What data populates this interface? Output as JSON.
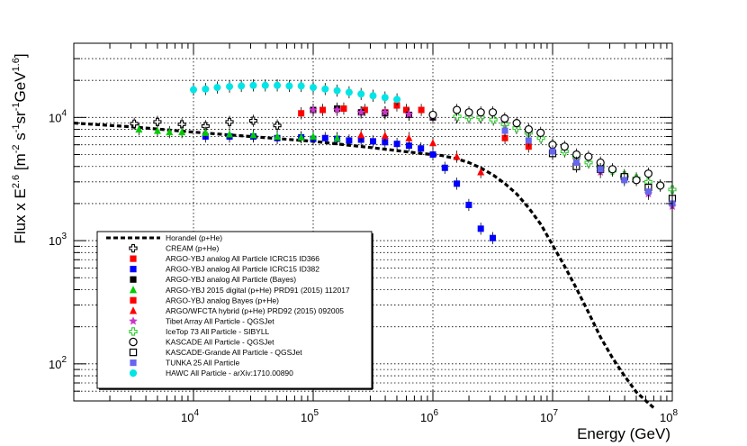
{
  "chart_data": {
    "type": "scatter",
    "xlabel": "Energy (GeV)",
    "ylabel": "Flux x E^2.6 [m^-2 s^-1 sr^-1 GeV^1.6]",
    "xscale": "log",
    "yscale": "log",
    "xlim": [
      1000,
      100000000
    ],
    "ylim": [
      50,
      40000
    ],
    "grid": true,
    "legend_position": "bottom-left",
    "x_tick_labels": [
      {
        "base": "10",
        "exp": "4"
      },
      {
        "base": "10",
        "exp": "5"
      },
      {
        "base": "10",
        "exp": "6"
      },
      {
        "base": "10",
        "exp": "7"
      },
      {
        "base": "10",
        "exp": "8"
      }
    ],
    "y_tick_labels": [
      {
        "base": "10",
        "exp": "2"
      },
      {
        "base": "10",
        "exp": "3"
      },
      {
        "base": "10",
        "exp": "4"
      }
    ],
    "series": [
      {
        "name": "Horandel (p+He)",
        "style": "dashed-line",
        "color": "#000000",
        "x": [
          1000,
          3000,
          10000,
          30000,
          100000,
          300000,
          800000,
          1200000,
          1600000,
          2000000,
          2500000,
          3200000,
          4000000,
          5000000,
          6300000,
          8000000,
          10000000,
          12600000,
          15800000,
          20000000,
          25100000,
          31600000,
          39800000,
          50100000,
          63100000,
          70000000
        ],
        "y": [
          9000,
          8400,
          7600,
          7000,
          6400,
          5700,
          5100,
          4900,
          4600,
          4300,
          3900,
          3400,
          2900,
          2400,
          1850,
          1350,
          920,
          620,
          410,
          260,
          165,
          112,
          80,
          59,
          48,
          44
        ]
      },
      {
        "name": "CREAM (p+He)",
        "marker": "open-cross",
        "color": "#000000",
        "x": [
          3200,
          5000,
          8000,
          12600,
          20000,
          31600,
          50100
        ],
        "y": [
          8900,
          9200,
          8800,
          8500,
          9200,
          9400,
          8600
        ]
      },
      {
        "name": "ARGO-YBJ analog All Particle ICRC15 ID366",
        "marker": "square",
        "color": "#ff0000",
        "x": [
          79400,
          120000,
          180000,
          270000,
          400000,
          500000,
          600000,
          800000,
          1000000
        ],
        "y": [
          10800,
          11500,
          11800,
          11500,
          11000,
          12500,
          11500,
          11500,
          10500
        ]
      },
      {
        "name": "ARGO-YBJ analog All Particle ICRC15 ID382",
        "marker": "square",
        "color": "#0000ff",
        "x": [
          12600,
          20000,
          31600,
          50100,
          79400,
          100000,
          125900,
          158500,
          199500,
          251200,
          316200,
          398100,
          501200,
          631000,
          794300,
          1000000,
          1258900,
          1584900,
          1995300,
          2511900,
          3162300
        ],
        "y": [
          7000,
          7000,
          7000,
          6800,
          6900,
          6700,
          6800,
          6700,
          6500,
          6600,
          6400,
          6300,
          6100,
          5900,
          5600,
          5000,
          3900,
          2900,
          1950,
          1250,
          1050
        ]
      },
      {
        "name": "ARGO-YBJ analog All Particle (Bayes)",
        "marker": "square",
        "color": "#000000",
        "x": [
          100000,
          158500,
          251200,
          398100,
          631000,
          1000000
        ],
        "y": [
          11500,
          11800,
          11000,
          10800,
          10500,
          10000
        ]
      },
      {
        "name": "ARGO-YBJ 2015 digital (p+He) PRD91 (2015) 112017",
        "marker": "triangle",
        "color": "#00cc00",
        "x": [
          3500,
          5000,
          6300,
          8000,
          12600,
          20000,
          31600,
          50100,
          79400,
          100000,
          158500
        ],
        "y": [
          8000,
          7800,
          7600,
          7600,
          7500,
          7300,
          7200,
          7000,
          6900,
          7000,
          6800
        ]
      },
      {
        "name": "ARGO-YBJ analog Bayes (p+He)",
        "marker": "square",
        "color": "#ff0000",
        "x": [
          4000000,
          6300000,
          10000000,
          15800000
        ],
        "y": [
          6800,
          5800,
          5200,
          4000
        ]
      },
      {
        "name": "ARGO/WFCTA hybrid (p+He) PRD92 (2015) 092005",
        "marker": "triangle",
        "color": "#ff0000",
        "x": [
          251200,
          398100,
          631000,
          1000000,
          1584900,
          2511900
        ],
        "y": [
          7200,
          7100,
          6800,
          6200,
          4800,
          3600
        ]
      },
      {
        "name": "Tibet Array All Particle - QGSJet",
        "marker": "star",
        "color": "#cc33cc",
        "x": [
          100000,
          158500,
          251200,
          398100,
          631000,
          1000000,
          1584900,
          2511900,
          3981100,
          6309600,
          10000000,
          15800000,
          25100000,
          39800000,
          63100000,
          100000000
        ],
        "y": [
          11500,
          11500,
          11000,
          11000,
          10600,
          10300,
          10000,
          10000,
          9000,
          7500,
          6000,
          4500,
          3600,
          3200,
          2400,
          1900
        ]
      },
      {
        "name": "IceTop 73 All Particle - SIBYLL",
        "marker": "open-cross",
        "color": "#33cc33",
        "x": [
          1600000,
          2000000,
          2500000,
          3200000,
          4000000,
          5000000,
          6300000,
          8000000,
          10000000,
          12600000,
          15800000,
          20000000,
          25100000,
          31600000,
          39800000,
          50100000,
          63100000,
          79400000,
          100000000
        ],
        "y": [
          10200,
          10000,
          10000,
          9600,
          8800,
          8200,
          7500,
          6800,
          6000,
          5300,
          4800,
          4300,
          4000,
          3700,
          3400,
          3200,
          3000,
          2800,
          2600
        ]
      },
      {
        "name": "KASCADE All Particle - QGSJet",
        "marker": "open-circle",
        "color": "#000000",
        "x": [
          1000000,
          1584900,
          2000000,
          2511900,
          3162300,
          3981100,
          5011900,
          6309600,
          7943300,
          10000000,
          12589300,
          15848900,
          19952600,
          25118900,
          31622800,
          39810700,
          50118700,
          63095700,
          79432800
        ],
        "y": [
          10500,
          11500,
          11000,
          11000,
          11000,
          9800,
          9000,
          8000,
          7500,
          6000,
          5800,
          5000,
          4800,
          4300,
          3800,
          3300,
          3100,
          3500,
          2800
        ]
      },
      {
        "name": "KASCADE-Grande All Particle - QGSJet",
        "marker": "open-square",
        "color": "#000000",
        "x": [
          10000000,
          15800000,
          25100000,
          39800000,
          63100000,
          100000000
        ],
        "y": [
          5100,
          4000,
          3800,
          3300,
          2700,
          2200
        ]
      },
      {
        "name": "TUNKA 25 All Particle",
        "marker": "square",
        "color": "#6666ee",
        "x": [
          4000000,
          6300000,
          10000000,
          15800000,
          25100000,
          39800000,
          63100000,
          100000000
        ],
        "y": [
          7800,
          6500,
          5300,
          4300,
          3800,
          3100,
          2500,
          2000
        ]
      },
      {
        "name": "HAWC All Particle - arXiv:1710.00890",
        "marker": "circle",
        "color": "#00e5e5",
        "x": [
          10000,
          12600,
          15800,
          20000,
          25100,
          31600,
          39800,
          50100,
          63100,
          79400,
          100000,
          125900,
          158500,
          199500,
          251200,
          316200,
          398100,
          501200
        ],
        "y": [
          16800,
          17000,
          17500,
          17800,
          18000,
          18200,
          18200,
          18200,
          18000,
          18000,
          17500,
          17000,
          16500,
          16000,
          15500,
          15000,
          14500,
          14000
        ]
      }
    ]
  }
}
